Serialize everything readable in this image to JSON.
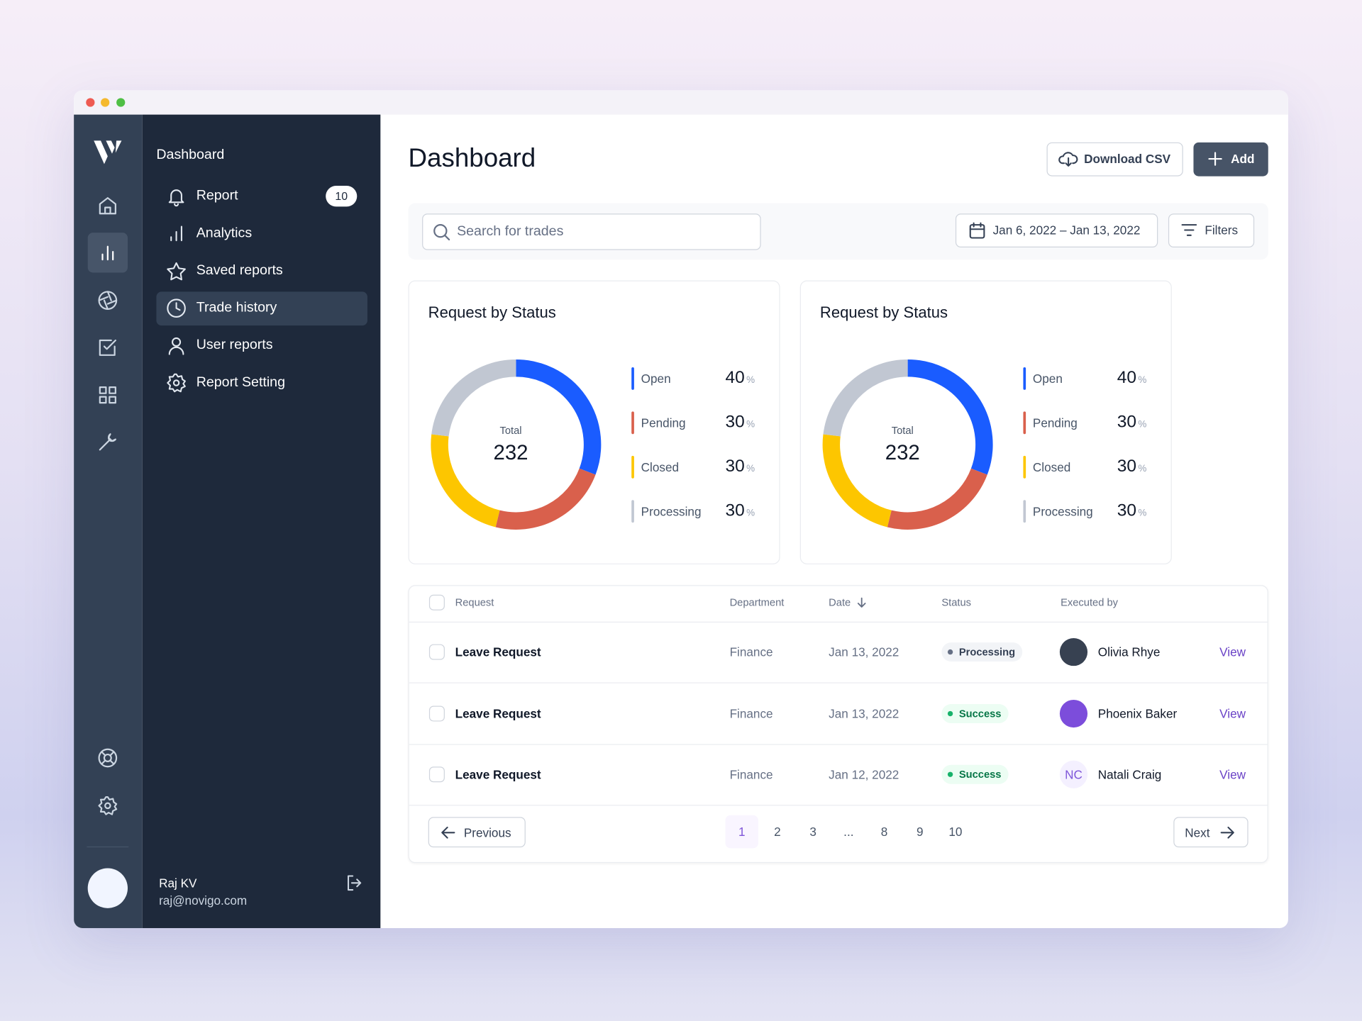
{
  "sidebar": {
    "section_title": "Dashboard",
    "nav": [
      {
        "label": "Report",
        "badge": "10"
      },
      {
        "label": "Analytics"
      },
      {
        "label": "Saved reports"
      },
      {
        "label": "Trade history"
      },
      {
        "label": "User reports"
      },
      {
        "label": "Report Setting"
      }
    ],
    "user": {
      "name": "Raj KV",
      "email": "raj@novigo.com"
    }
  },
  "header": {
    "title": "Dashboard",
    "download_button": "Download CSV",
    "add_button": "Add"
  },
  "toolbar": {
    "search_placeholder": "Search for trades",
    "date_range": "Jan 6, 2022 – Jan 13, 2022",
    "filters_button": "Filters"
  },
  "charts": [
    {
      "type": "donut",
      "title": "Request by Status",
      "total_label": "Total",
      "total": 232,
      "unit": "%",
      "items": [
        {
          "label": "Open",
          "value": 40,
          "color": "#1a5cff"
        },
        {
          "label": "Pending",
          "value": 30,
          "color": "#d9604c"
        },
        {
          "label": "Closed",
          "value": 30,
          "color": "#fdc600"
        },
        {
          "label": "Processing",
          "value": 30,
          "color": "#c1c7d2"
        }
      ]
    },
    {
      "type": "donut",
      "title": "Request by Status",
      "total_label": "Total",
      "total": 232,
      "unit": "%",
      "items": [
        {
          "label": "Open",
          "value": 40,
          "color": "#1a5cff"
        },
        {
          "label": "Pending",
          "value": 30,
          "color": "#d9604c"
        },
        {
          "label": "Closed",
          "value": 30,
          "color": "#fdc600"
        },
        {
          "label": "Processing",
          "value": 30,
          "color": "#c1c7d2"
        }
      ]
    }
  ],
  "table": {
    "columns": [
      "Request",
      "Department",
      "Date",
      "Status",
      "Executed by"
    ],
    "rows": [
      {
        "request": "Leave Request",
        "department": "Finance",
        "date": "Jan 13, 2022",
        "status": "Processing",
        "executed_by": "Olivia Rhye",
        "action": "View"
      },
      {
        "request": "Leave Request",
        "department": "Finance",
        "date": "Jan 13, 2022",
        "status": "Success",
        "executed_by": "Phoenix Baker",
        "action": "View"
      },
      {
        "request": "Leave Request",
        "department": "Finance",
        "date": "Jan 12, 2022",
        "status": "Success",
        "executed_by": "Natali Craig",
        "avatar_initials": "NC",
        "action": "View"
      }
    ],
    "pagination": {
      "previous": "Previous",
      "pages": [
        "1",
        "2",
        "3",
        "...",
        "8",
        "9",
        "10"
      ],
      "next": "Next"
    }
  }
}
